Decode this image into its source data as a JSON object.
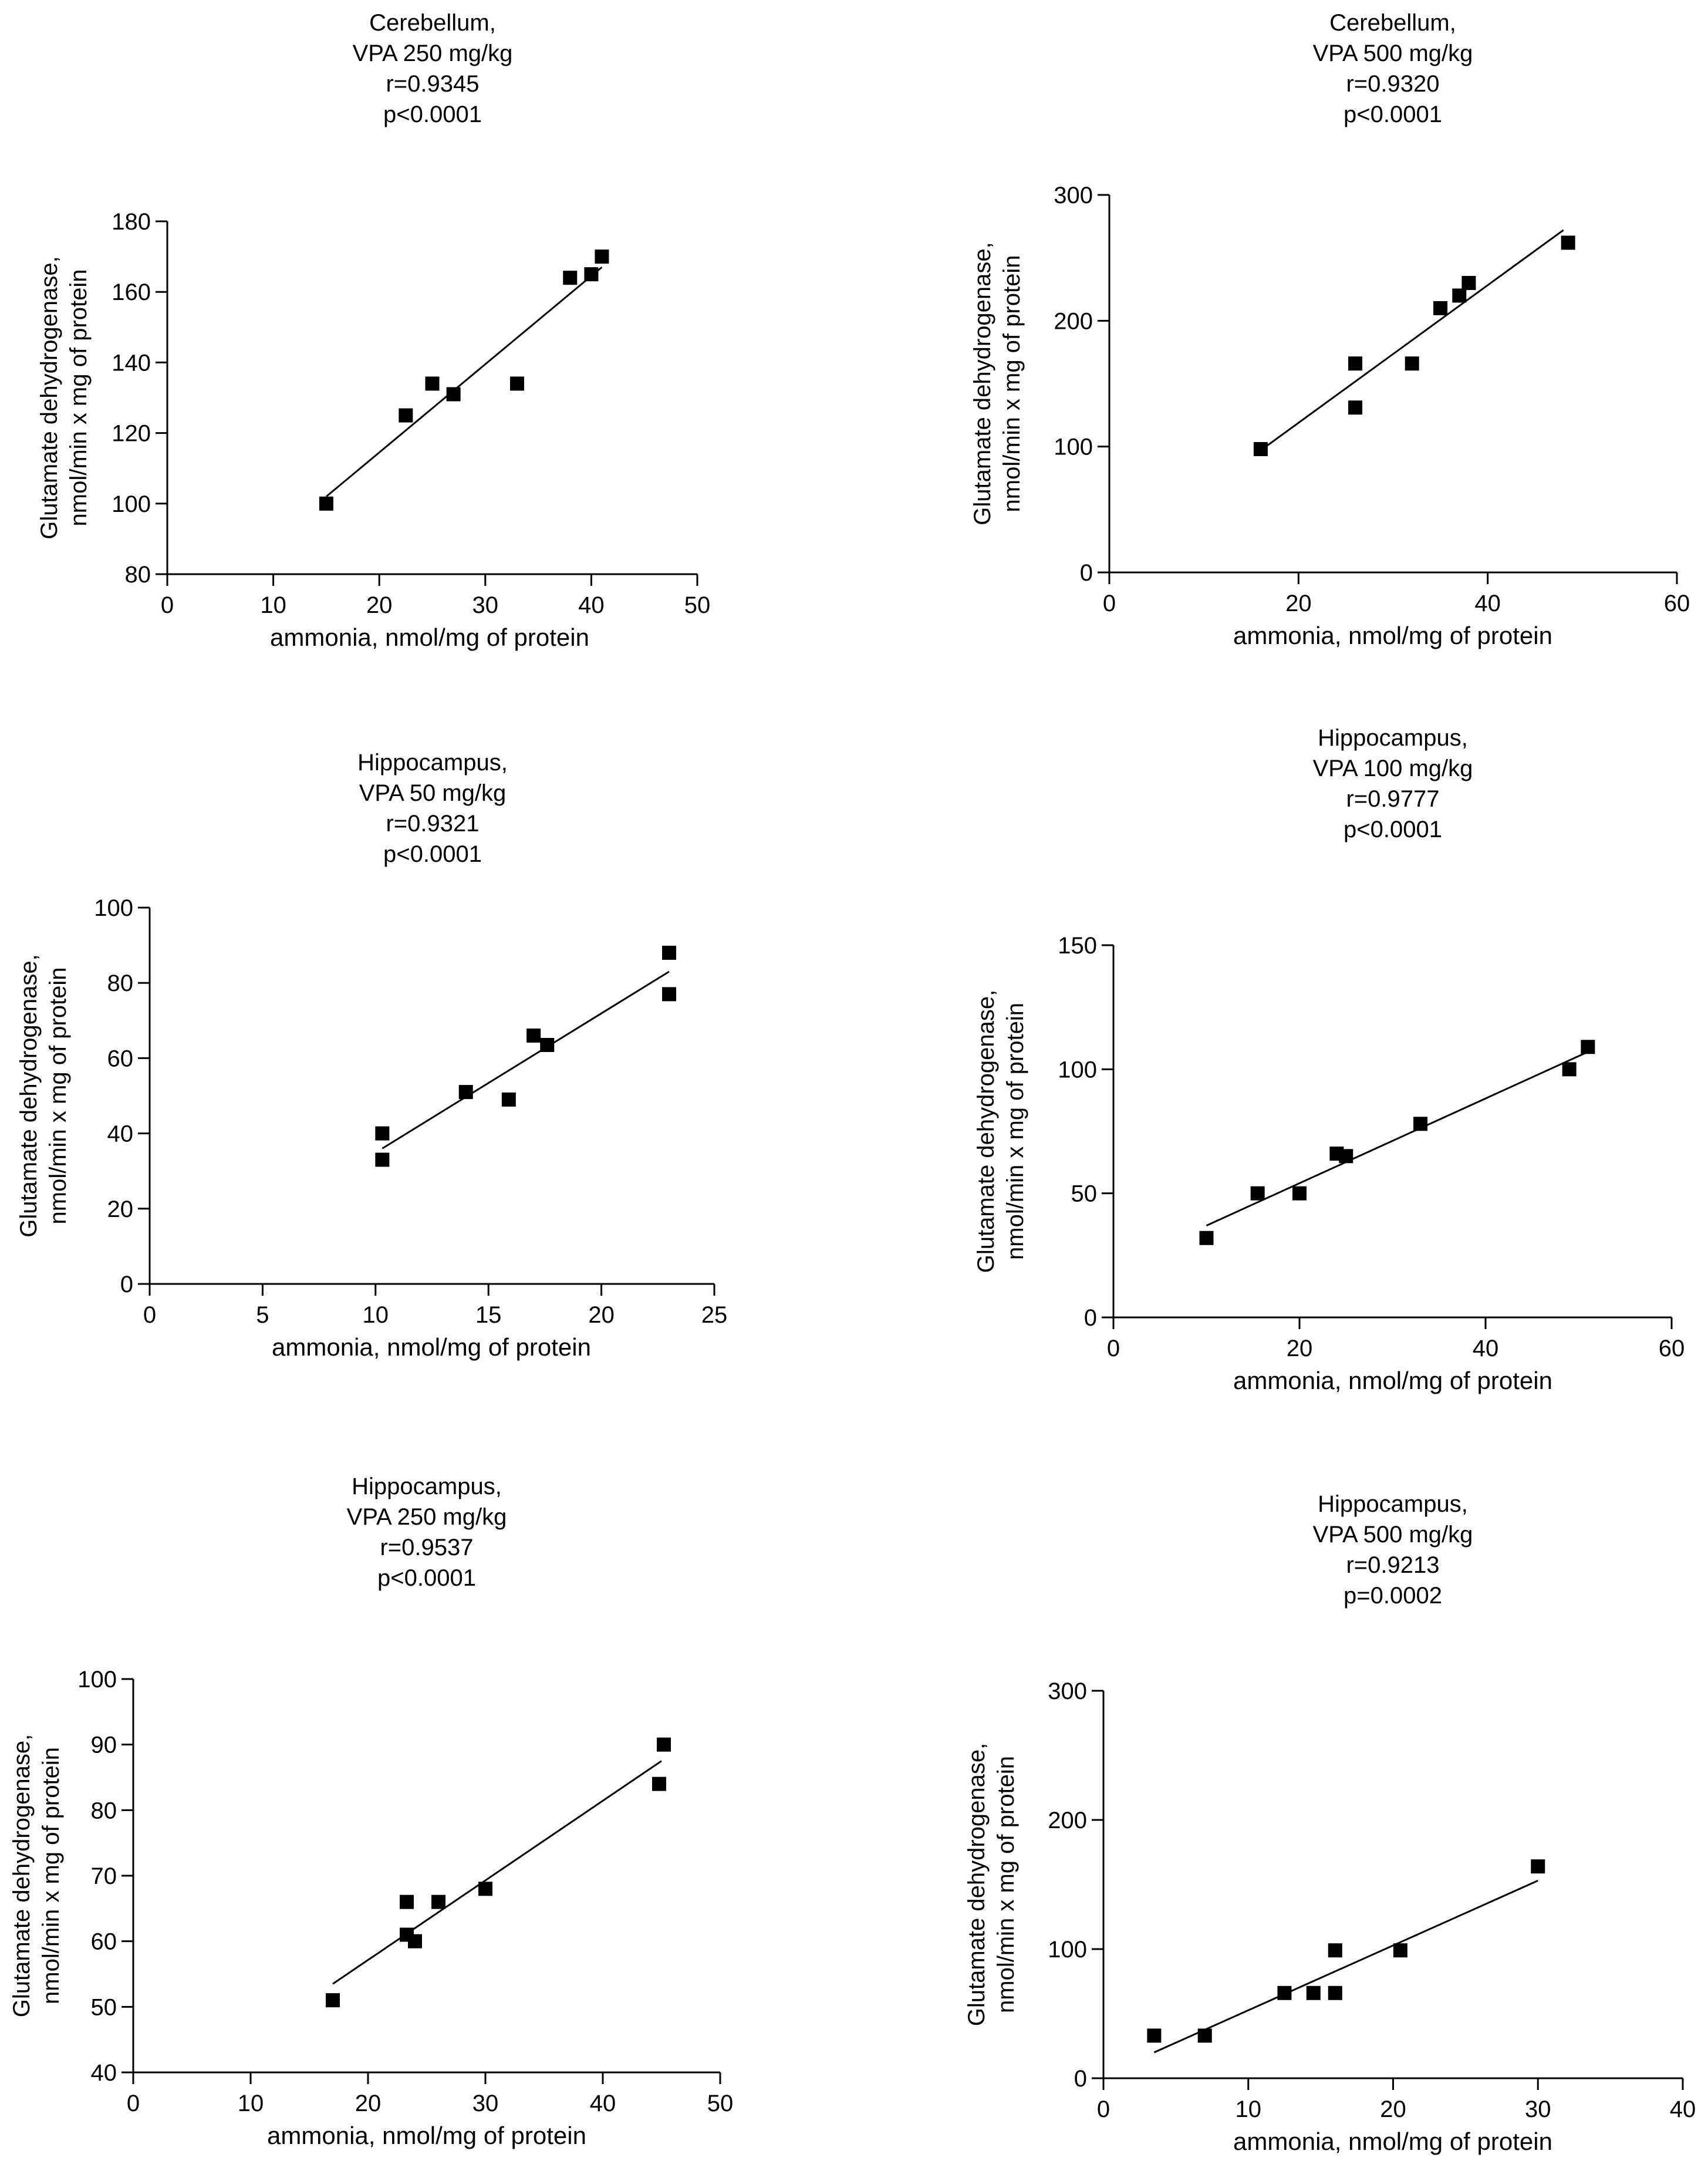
{
  "chart_data": [
    {
      "type": "scatter",
      "title": [
        "Cerebellum,",
        "VPA 250 mg/kg",
        "r=0.9345",
        "p<0.0001"
      ],
      "xlabel": "ammonia, nmol/mg of protein",
      "ylabel": [
        "Glutamate dehydrogenase,",
        "nmol/min x mg of protein"
      ],
      "xlim": [
        0,
        50
      ],
      "ylim": [
        80,
        180
      ],
      "xticks": [
        0,
        10,
        20,
        30,
        40,
        50
      ],
      "yticks": [
        80,
        100,
        120,
        140,
        160,
        180
      ],
      "points": [
        [
          15,
          100
        ],
        [
          22.5,
          125
        ],
        [
          25,
          134
        ],
        [
          27,
          131
        ],
        [
          33,
          134
        ],
        [
          38,
          164
        ],
        [
          40,
          165
        ],
        [
          41,
          170
        ]
      ],
      "fit": [
        [
          15,
          102
        ],
        [
          41,
          167
        ]
      ]
    },
    {
      "type": "scatter",
      "title": [
        "Cerebellum,",
        "VPA 500 mg/kg",
        "r=0.9320",
        "p<0.0001"
      ],
      "xlabel": "ammonia, nmol/mg of protein",
      "ylabel": [
        "Glutamate dehydrogenase,",
        "nmol/min x mg of protein"
      ],
      "xlim": [
        0,
        60
      ],
      "ylim": [
        0,
        300
      ],
      "xticks": [
        0,
        20,
        40,
        60
      ],
      "yticks": [
        0,
        100,
        200,
        300
      ],
      "points": [
        [
          16,
          98
        ],
        [
          26,
          166
        ],
        [
          26,
          131
        ],
        [
          32,
          166
        ],
        [
          35,
          210
        ],
        [
          37,
          220
        ],
        [
          38,
          230
        ],
        [
          48.5,
          262
        ]
      ],
      "fit": [
        [
          16,
          97
        ],
        [
          48,
          272
        ]
      ]
    },
    {
      "type": "scatter",
      "title": [
        "Hippocampus,",
        "VPA 50 mg/kg",
        "r=0.9321",
        "p<0.0001"
      ],
      "xlabel": "ammonia, nmol/mg of protein",
      "ylabel": [
        "Glutamate dehydrogenase,",
        "nmol/min x mg of protein"
      ],
      "xlim": [
        0,
        25
      ],
      "ylim": [
        0,
        100
      ],
      "xticks": [
        0,
        5,
        10,
        15,
        20,
        25
      ],
      "yticks": [
        0,
        20,
        40,
        60,
        80,
        100
      ],
      "points": [
        [
          10.3,
          40
        ],
        [
          10.3,
          33
        ],
        [
          14,
          51
        ],
        [
          15.9,
          49
        ],
        [
          17,
          66
        ],
        [
          17.6,
          63.5
        ],
        [
          23,
          88
        ],
        [
          23,
          77
        ]
      ],
      "fit": [
        [
          10.3,
          36
        ],
        [
          23,
          83
        ]
      ]
    },
    {
      "type": "scatter",
      "title": [
        "Hippocampus,",
        "VPA 100 mg/kg",
        "r=0.9777",
        "p<0.0001"
      ],
      "xlabel": "ammonia, nmol/mg of protein",
      "ylabel": [
        "Glutamate dehydrogenase,",
        "nmol/min x mg of protein"
      ],
      "xlim": [
        0,
        60
      ],
      "ylim": [
        0,
        150
      ],
      "xticks": [
        0,
        20,
        40,
        60
      ],
      "yticks": [
        0,
        50,
        100,
        150
      ],
      "points": [
        [
          10,
          32
        ],
        [
          15.5,
          50
        ],
        [
          20,
          50
        ],
        [
          24,
          66
        ],
        [
          25,
          65
        ],
        [
          33,
          78
        ],
        [
          49,
          100
        ],
        [
          51,
          109
        ]
      ],
      "fit": [
        [
          10,
          37
        ],
        [
          51,
          107
        ]
      ]
    },
    {
      "type": "scatter",
      "title": [
        "Hippocampus,",
        "VPA 250 mg/kg",
        "r=0.9537",
        "p<0.0001"
      ],
      "xlabel": "ammonia, nmol/mg of protein",
      "ylabel": [
        "Glutamate dehydrogenase,",
        "nmol/min x mg of protein"
      ],
      "xlim": [
        0,
        50
      ],
      "ylim": [
        40,
        100
      ],
      "xticks": [
        0,
        10,
        20,
        30,
        40,
        50
      ],
      "yticks": [
        40,
        50,
        60,
        70,
        80,
        90,
        100
      ],
      "points": [
        [
          17,
          51
        ],
        [
          23.3,
          66
        ],
        [
          23.3,
          61
        ],
        [
          24,
          60
        ],
        [
          26,
          66
        ],
        [
          30,
          68
        ],
        [
          44.8,
          84
        ],
        [
          45.2,
          90
        ]
      ],
      "fit": [
        [
          17,
          53.5
        ],
        [
          45,
          87.5
        ]
      ]
    },
    {
      "type": "scatter",
      "title": [
        "Hippocampus,",
        "VPA 500 mg/kg",
        "r=0.9213",
        "p=0.0002"
      ],
      "xlabel": "ammonia, nmol/mg of protein",
      "ylabel": [
        "Glutamate dehydrogenase,",
        "nmol/min x mg of protein"
      ],
      "xlim": [
        0,
        40
      ],
      "ylim": [
        0,
        300
      ],
      "xticks": [
        0,
        10,
        20,
        30,
        40
      ],
      "yticks": [
        0,
        100,
        200,
        300
      ],
      "points": [
        [
          3.5,
          33
        ],
        [
          7,
          33
        ],
        [
          12.5,
          66
        ],
        [
          14.5,
          66
        ],
        [
          16,
          66
        ],
        [
          16,
          99
        ],
        [
          20.5,
          99
        ],
        [
          30,
          164
        ]
      ],
      "fit": [
        [
          3.5,
          20
        ],
        [
          30,
          153
        ]
      ]
    }
  ]
}
